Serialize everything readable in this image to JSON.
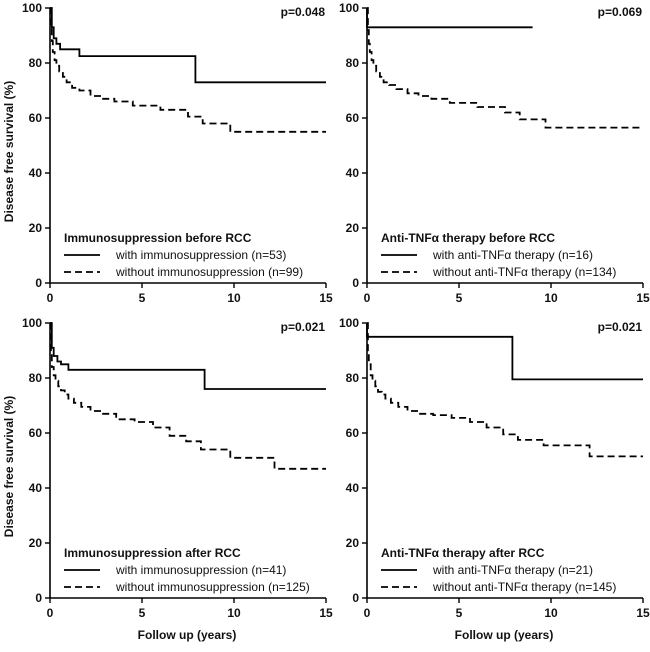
{
  "chart_data": [
    {
      "type": "line",
      "subtype": "kaplan-meier",
      "panel": "top-left",
      "pvalue": "p=0.048",
      "legend_title": "Immunosuppression before RCC",
      "ylabel": "Disease free survival (%)",
      "xlabel": "",
      "xlim": [
        0,
        15
      ],
      "ylim": [
        0,
        100
      ],
      "xticks": [
        "0",
        "5",
        "10",
        "15"
      ],
      "yticks": [
        "0",
        "20",
        "40",
        "60",
        "80",
        "100"
      ],
      "series": [
        {
          "name": "with immunosuppression (n=53)",
          "style": "solid",
          "x": [
            0,
            0.1,
            0.2,
            0.35,
            0.55,
            1.6,
            7.9,
            7.9,
            15
          ],
          "y": [
            100,
            93,
            89,
            87,
            85,
            82.5,
            82.5,
            73,
            73
          ]
        },
        {
          "name": "without immunosuppression (n=99)",
          "style": "dashed",
          "x": [
            0,
            0.05,
            0.1,
            0.15,
            0.25,
            0.35,
            0.5,
            0.7,
            0.9,
            1.2,
            1.6,
            2.2,
            2.8,
            3.5,
            4.5,
            6.0,
            7.5,
            8.3,
            9.8,
            15
          ],
          "y": [
            100,
            93,
            88,
            84,
            81,
            79,
            77,
            75,
            73,
            71,
            70,
            68,
            67,
            66,
            64.5,
            63,
            60.5,
            58,
            55,
            55
          ]
        }
      ]
    },
    {
      "type": "line",
      "subtype": "kaplan-meier",
      "panel": "top-right",
      "pvalue": "p=0.069",
      "legend_title": "Anti-TNFα therapy before RCC",
      "ylabel": "",
      "xlabel": "",
      "xlim": [
        0,
        15
      ],
      "ylim": [
        0,
        100
      ],
      "xticks": [
        "0",
        "5",
        "10",
        "15"
      ],
      "yticks": [
        "0",
        "20",
        "40",
        "60",
        "80",
        "100"
      ],
      "series": [
        {
          "name": "with anti-TNFα therapy (n=16)",
          "style": "solid",
          "x": [
            0,
            0,
            9.0
          ],
          "y": [
            100,
            93,
            93
          ]
        },
        {
          "name": "without anti-TNFα therapy (n=134)",
          "style": "dashed",
          "x": [
            0,
            0.05,
            0.1,
            0.15,
            0.25,
            0.35,
            0.5,
            0.7,
            0.9,
            1.2,
            1.6,
            2.2,
            2.8,
            3.5,
            4.5,
            6.0,
            7.5,
            8.3,
            9.7,
            15
          ],
          "y": [
            100,
            92,
            87,
            84,
            81,
            79,
            77,
            75,
            73,
            72,
            70.5,
            69,
            68,
            67,
            65.5,
            64,
            62,
            59.5,
            56.5,
            56.5
          ]
        }
      ]
    },
    {
      "type": "line",
      "subtype": "kaplan-meier",
      "panel": "bottom-left",
      "pvalue": "p=0.021",
      "legend_title": "Immunosuppression after RCC",
      "ylabel": "Disease free survival (%)",
      "xlabel": "Follow up (years)",
      "xlim": [
        0,
        15
      ],
      "ylim": [
        0,
        100
      ],
      "xticks": [
        "0",
        "5",
        "10",
        "15"
      ],
      "yticks": [
        "0",
        "20",
        "40",
        "60",
        "80",
        "100"
      ],
      "series": [
        {
          "name": "with immunosuppression (n=41)",
          "style": "solid",
          "x": [
            0,
            0.1,
            0.2,
            0.4,
            0.6,
            1.0,
            8.4,
            8.4,
            15
          ],
          "y": [
            100,
            91,
            88,
            86,
            85,
            83,
            83,
            76,
            76
          ]
        },
        {
          "name": "without immunosuppression (n=125)",
          "style": "dashed",
          "x": [
            0,
            0.05,
            0.1,
            0.2,
            0.3,
            0.45,
            0.6,
            0.8,
            1.0,
            1.3,
            1.7,
            2.2,
            2.8,
            3.6,
            4.6,
            5.6,
            6.5,
            7.4,
            8.2,
            9.8,
            12.2,
            15
          ],
          "y": [
            100,
            89,
            84,
            81,
            79,
            77,
            75.5,
            74,
            72.5,
            71,
            69.5,
            68,
            67,
            65,
            64,
            62,
            59,
            57,
            54,
            51,
            47,
            47
          ]
        }
      ]
    },
    {
      "type": "line",
      "subtype": "kaplan-meier",
      "panel": "bottom-right",
      "pvalue": "p=0.021",
      "legend_title": "Anti-TNFα therapy after RCC",
      "ylabel": "",
      "xlabel": "Follow up (years)",
      "xlim": [
        0,
        15
      ],
      "ylim": [
        0,
        100
      ],
      "xticks": [
        "0",
        "5",
        "10",
        "15"
      ],
      "yticks": [
        "0",
        "20",
        "40",
        "60",
        "80",
        "100"
      ],
      "series": [
        {
          "name": "with anti-TNFα therapy (n=21)",
          "style": "solid",
          "x": [
            0,
            0,
            7.9,
            7.9,
            15
          ],
          "y": [
            100,
            95,
            95,
            79.5,
            79.5
          ]
        },
        {
          "name": "without anti-TNFα therapy (n=145)",
          "style": "dashed",
          "x": [
            0,
            0.05,
            0.1,
            0.2,
            0.3,
            0.45,
            0.6,
            0.8,
            1.0,
            1.3,
            1.7,
            2.2,
            2.8,
            3.6,
            4.6,
            5.6,
            6.5,
            7.4,
            8.2,
            9.6,
            12.1,
            15
          ],
          "y": [
            100,
            89,
            85,
            81,
            79,
            77,
            75,
            74,
            72.5,
            71,
            69.5,
            68,
            67,
            66.5,
            65.5,
            64,
            62,
            59.5,
            57.5,
            55.5,
            51.5,
            51.5
          ]
        }
      ]
    }
  ]
}
